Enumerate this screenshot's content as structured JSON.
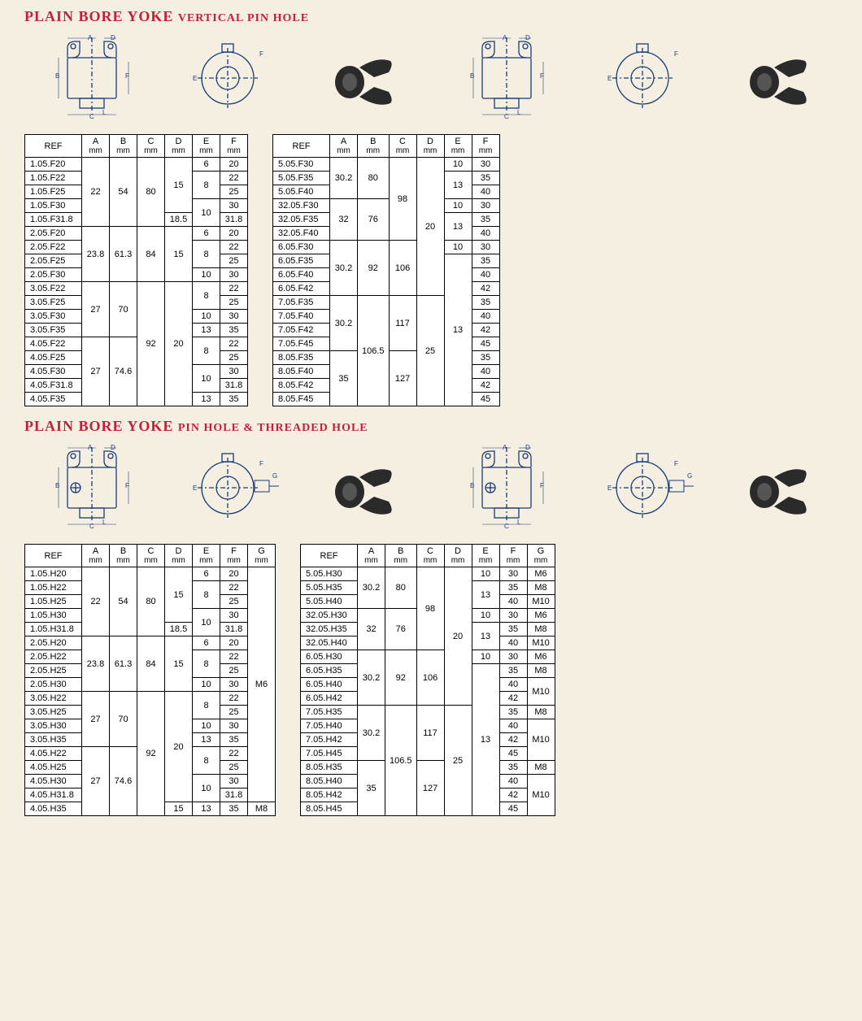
{
  "colors": {
    "title": "#c41e3a",
    "bg": "#f5efe2",
    "table_bg": "#ffffff",
    "border": "#000000",
    "photo_fill": "#2a2a2a"
  },
  "section1": {
    "title_main": "PLAIN BORE YOKE",
    "title_sub": "VERTICAL PIN HOLE",
    "left": {
      "columns": [
        "REF",
        "A",
        "B",
        "C",
        "D",
        "E",
        "F"
      ],
      "units": [
        "",
        "mm",
        "mm",
        "mm",
        "mm",
        "mm",
        "mm"
      ],
      "rows": [
        [
          "1.05.F20",
          "22",
          "54",
          "80",
          "15",
          "6",
          "20"
        ],
        [
          "1.05.F22",
          "",
          "",
          "",
          "",
          "8",
          "22"
        ],
        [
          "1.05.F25",
          "",
          "",
          "",
          "",
          "",
          "25"
        ],
        [
          "1.05.F30",
          "",
          "",
          "",
          "",
          "10",
          "30"
        ],
        [
          "1.05.F31.8",
          "",
          "",
          "",
          "18.5",
          "",
          "31.8"
        ],
        [
          "2.05.F20",
          "23.8",
          "61.3",
          "84",
          "15",
          "6",
          "20"
        ],
        [
          "2.05.F22",
          "",
          "",
          "",
          "",
          "8",
          "22"
        ],
        [
          "2.05.F25",
          "",
          "",
          "",
          "",
          "",
          "25"
        ],
        [
          "2.05.F30",
          "",
          "",
          "",
          "",
          "10",
          "30"
        ],
        [
          "3.05.F22",
          "27",
          "70",
          "92",
          "20",
          "8",
          "22"
        ],
        [
          "3.05.F25",
          "",
          "",
          "",
          "",
          "",
          "25"
        ],
        [
          "3.05.F30",
          "",
          "",
          "",
          "",
          "10",
          "30"
        ],
        [
          "3.05.F35",
          "",
          "",
          "",
          "",
          "13",
          "35"
        ],
        [
          "4.05.F22",
          "27",
          "74.6",
          "",
          "",
          "8",
          "22"
        ],
        [
          "4.05.F25",
          "",
          "",
          "",
          "",
          "",
          "25"
        ],
        [
          "4.05.F30",
          "",
          "",
          "",
          "",
          "10",
          "30"
        ],
        [
          "4.05.F31.8",
          "",
          "",
          "",
          "",
          "",
          "31.8"
        ],
        [
          "4.05.F35",
          "",
          "",
          "",
          "",
          "13",
          "35"
        ]
      ],
      "merges": {
        "1": {
          "A": [
            0,
            5
          ],
          "B": [
            0,
            5
          ],
          "C": [
            0,
            5
          ],
          "D": [
            0,
            4
          ],
          "E_8": [
            1,
            2
          ],
          "E_10": [
            3,
            2
          ]
        },
        "2": {
          "A": [
            5,
            4
          ],
          "B": [
            5,
            4
          ],
          "C": [
            5,
            4
          ],
          "D": [
            5,
            4
          ],
          "E_8": [
            6,
            2
          ]
        },
        "3": {
          "A": [
            9,
            4
          ],
          "B": [
            9,
            4
          ],
          "C": [
            9,
            9
          ],
          "D": [
            9,
            9
          ],
          "E_8": [
            9,
            2
          ]
        },
        "4": {
          "A": [
            13,
            5
          ],
          "B": [
            13,
            5
          ],
          "E_8": [
            13,
            2
          ],
          "E_10": [
            15,
            2
          ]
        }
      }
    },
    "right": {
      "columns": [
        "REF",
        "A",
        "B",
        "C",
        "D",
        "E",
        "F"
      ],
      "units": [
        "",
        "mm",
        "mm",
        "mm",
        "mm",
        "mm",
        "mm"
      ],
      "rows": [
        [
          "5.05.F30",
          "30.2",
          "80",
          "98",
          "20",
          "10",
          "30"
        ],
        [
          "5.05.F35",
          "",
          "",
          "",
          "",
          "13",
          "35"
        ],
        [
          "5.05.F40",
          "",
          "",
          "",
          "",
          "",
          "40"
        ],
        [
          "32.05.F30",
          "32",
          "76",
          "",
          "",
          "10",
          "30"
        ],
        [
          "32.05.F35",
          "",
          "",
          "",
          "",
          "13",
          "35"
        ],
        [
          "32.05.F40",
          "",
          "",
          "",
          "",
          "",
          "40"
        ],
        [
          "6.05.F30",
          "30.2",
          "92",
          "106",
          "",
          "10",
          "30"
        ],
        [
          "6.05.F35",
          "",
          "",
          "",
          "",
          "13",
          "35"
        ],
        [
          "6.05.F40",
          "",
          "",
          "",
          "",
          "",
          "40"
        ],
        [
          "6.05.F42",
          "",
          "",
          "",
          "",
          "",
          "42"
        ],
        [
          "7.05.F35",
          "30.2",
          "106.5",
          "117",
          "25",
          "",
          "35"
        ],
        [
          "7.05.F40",
          "",
          "",
          "",
          "",
          "",
          "40"
        ],
        [
          "7.05.F42",
          "",
          "",
          "",
          "",
          "",
          "42"
        ],
        [
          "7.05.F45",
          "",
          "",
          "",
          "",
          "",
          "45"
        ],
        [
          "8.05.F35",
          "35",
          "",
          "127",
          "",
          "",
          "35"
        ],
        [
          "8.05.F40",
          "",
          "",
          "",
          "",
          "",
          "40"
        ],
        [
          "8.05.F42",
          "",
          "",
          "",
          "",
          "",
          "42"
        ],
        [
          "8.05.F45",
          "",
          "",
          "",
          "",
          "",
          "45"
        ]
      ]
    }
  },
  "section2": {
    "title_main": "PLAIN BORE YOKE",
    "title_sub": "PIN HOLE & THREADED HOLE",
    "left": {
      "columns": [
        "REF",
        "A",
        "B",
        "C",
        "D",
        "E",
        "F",
        "G"
      ],
      "units": [
        "",
        "mm",
        "mm",
        "mm",
        "mm",
        "mm",
        "mm",
        "mm"
      ],
      "rows": [
        [
          "1.05.H20",
          "22",
          "54",
          "80",
          "15",
          "6",
          "20",
          "M6"
        ],
        [
          "1.05.H22",
          "",
          "",
          "",
          "",
          "8",
          "22",
          ""
        ],
        [
          "1.05.H25",
          "",
          "",
          "",
          "",
          "",
          "25",
          ""
        ],
        [
          "1.05.H30",
          "",
          "",
          "",
          "",
          "10",
          "30",
          ""
        ],
        [
          "1.05.H31.8",
          "",
          "",
          "",
          "18.5",
          "",
          "31.8",
          ""
        ],
        [
          "2.05.H20",
          "23.8",
          "61.3",
          "84",
          "15",
          "6",
          "20",
          ""
        ],
        [
          "2.05.H22",
          "",
          "",
          "",
          "",
          "8",
          "22",
          ""
        ],
        [
          "2.05.H25",
          "",
          "",
          "",
          "",
          "",
          "25",
          ""
        ],
        [
          "2.05.H30",
          "",
          "",
          "",
          "",
          "10",
          "30",
          ""
        ],
        [
          "3.05.H22",
          "27",
          "70",
          "92",
          "20",
          "8",
          "22",
          ""
        ],
        [
          "3.05.H25",
          "",
          "",
          "",
          "",
          "",
          "25",
          ""
        ],
        [
          "3.05.H30",
          "",
          "",
          "",
          "",
          "10",
          "30",
          ""
        ],
        [
          "3.05.H35",
          "",
          "",
          "",
          "",
          "13",
          "35",
          ""
        ],
        [
          "4.05.H22",
          "27",
          "74.6",
          "",
          "",
          "8",
          "22",
          ""
        ],
        [
          "4.05.H25",
          "",
          "",
          "",
          "",
          "",
          "25",
          ""
        ],
        [
          "4.05.H30",
          "",
          "",
          "",
          "",
          "10",
          "30",
          ""
        ],
        [
          "4.05.H31.8",
          "",
          "",
          "",
          "",
          "",
          "31.8",
          ""
        ],
        [
          "4.05.H35",
          "",
          "",
          "",
          "15",
          "13",
          "35",
          "M8"
        ]
      ]
    },
    "right": {
      "columns": [
        "REF",
        "A",
        "B",
        "C",
        "D",
        "E",
        "F",
        "G"
      ],
      "units": [
        "",
        "mm",
        "mm",
        "mm",
        "mm",
        "mm",
        "mm",
        "mm"
      ],
      "rows": [
        [
          "5.05.H30",
          "30.2",
          "80",
          "98",
          "20",
          "10",
          "30",
          "M6"
        ],
        [
          "5.05.H35",
          "",
          "",
          "",
          "",
          "13",
          "35",
          "M8"
        ],
        [
          "5.05.H40",
          "",
          "",
          "",
          "",
          "",
          "40",
          "M10"
        ],
        [
          "32.05.H30",
          "32",
          "76",
          "",
          "",
          "10",
          "30",
          "M6"
        ],
        [
          "32.05.H35",
          "",
          "",
          "",
          "",
          "13",
          "35",
          "M8"
        ],
        [
          "32.05.H40",
          "",
          "",
          "",
          "",
          "",
          "40",
          "M10"
        ],
        [
          "6.05.H30",
          "30.2",
          "92",
          "106",
          "",
          "10",
          "30",
          "M6"
        ],
        [
          "6.05.H35",
          "",
          "",
          "",
          "",
          "13",
          "35",
          "M8"
        ],
        [
          "6.05.H40",
          "",
          "",
          "",
          "",
          "",
          "40",
          "M10"
        ],
        [
          "6.05.H42",
          "",
          "",
          "",
          "",
          "",
          "42",
          ""
        ],
        [
          "7.05.H35",
          "30.2",
          "106.5",
          "117",
          "25",
          "",
          "35",
          "M8"
        ],
        [
          "7.05.H40",
          "",
          "",
          "",
          "",
          "",
          "40",
          "M10"
        ],
        [
          "7.05.H42",
          "",
          "",
          "",
          "",
          "",
          "42",
          ""
        ],
        [
          "7.05.H45",
          "",
          "",
          "",
          "",
          "",
          "45",
          ""
        ],
        [
          "8.05.H35",
          "35",
          "",
          "127",
          "",
          "",
          "35",
          "M8"
        ],
        [
          "8.05.H40",
          "",
          "",
          "",
          "",
          "",
          "40",
          "M10"
        ],
        [
          "8.05.H42",
          "",
          "",
          "",
          "",
          "",
          "42",
          ""
        ],
        [
          "8.05.H45",
          "",
          "",
          "",
          "",
          "",
          "45",
          ""
        ]
      ]
    }
  },
  "diagram_labels": [
    "A",
    "B",
    "C",
    "D",
    "E",
    "F",
    "G"
  ]
}
